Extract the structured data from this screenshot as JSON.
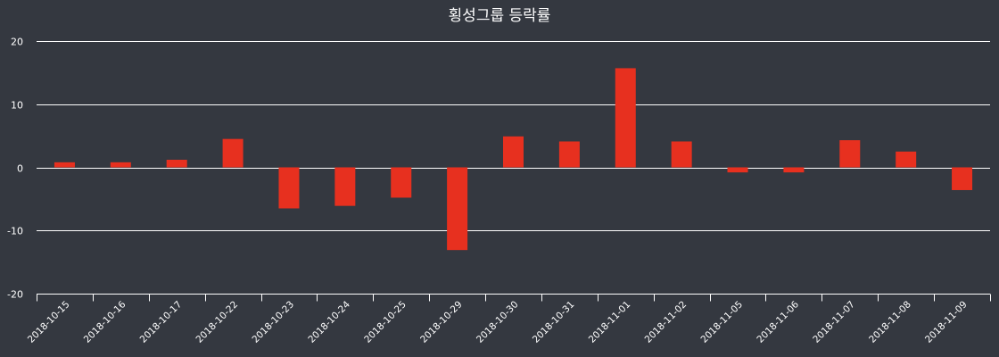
{
  "colors": {
    "background": "#343840",
    "bar": "#e7301f",
    "grid": "#ffffff",
    "axis": "#ffffff",
    "text": "#ffffff"
  },
  "chart_data": {
    "type": "bar",
    "title": "횡성그룹 등락률",
    "xlabel": "",
    "ylabel": "",
    "ylim": [
      -20,
      20
    ],
    "yticks": [
      20,
      10,
      0,
      -10,
      -20
    ],
    "ytick_labels": [
      "20",
      "10",
      "0",
      "-10",
      "-20"
    ],
    "grid": true,
    "legend": "none",
    "categories": [
      "2018-10-15",
      "2018-10-16",
      "2018-10-17",
      "2018-10-22",
      "2018-10-23",
      "2018-10-24",
      "2018-10-25",
      "2018-10-29",
      "2018-10-30",
      "2018-10-31",
      "2018-11-01",
      "2018-11-02",
      "2018-11-05",
      "2018-11-06",
      "2018-11-07",
      "2018-11-08",
      "2018-11-09"
    ],
    "values": [
      0.8,
      0.8,
      1.2,
      4.5,
      -6.5,
      -6.1,
      -4.8,
      -13.1,
      4.9,
      4.1,
      15.7,
      4.1,
      -0.8,
      -0.8,
      4.3,
      2.5,
      -3.6
    ]
  }
}
